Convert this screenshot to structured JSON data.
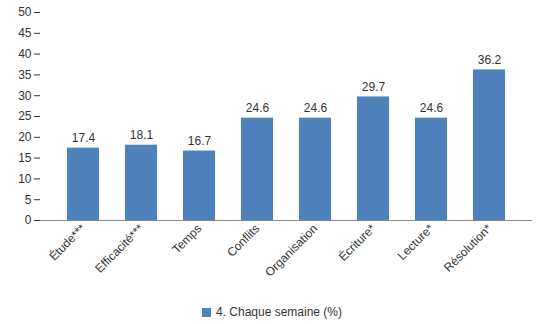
{
  "chart_data": {
    "type": "bar",
    "categories": [
      "Étude***",
      "Efficacité***",
      "Temps",
      "Conflits",
      "Organisation",
      "Écriture*",
      "Lecture*",
      "Résolution*"
    ],
    "series": [
      {
        "name": "4. Chaque semaine (%)",
        "color": "#4f81bd",
        "values": [
          17.4,
          18.1,
          16.7,
          24.6,
          24.6,
          29.7,
          24.6,
          36.2
        ]
      }
    ],
    "ylim": [
      0,
      50
    ],
    "yticks": [
      0,
      5,
      10,
      15,
      20,
      25,
      30,
      35,
      40,
      45,
      50
    ],
    "grid": false,
    "data_labels": true,
    "legend": "bottom"
  }
}
